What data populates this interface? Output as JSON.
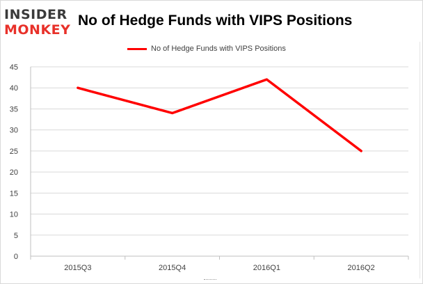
{
  "logo": {
    "top": "INSIDER",
    "bottom": "MONKEY"
  },
  "colors": {
    "series": "#ff0000",
    "grid": "#d9d9d9",
    "axis": "#bfbfbf"
  },
  "chart_data": {
    "type": "line",
    "title": "No of Hedge Funds with VIPS Positions",
    "categories": [
      "2015Q3",
      "2015Q4",
      "2016Q1",
      "2016Q2"
    ],
    "series": [
      {
        "name": "No of Hedge Funds with VIPS Positions",
        "values": [
          40,
          34,
          42,
          25
        ]
      }
    ],
    "ylim": [
      0,
      45
    ],
    "yticks": [
      0,
      5,
      10,
      15,
      20,
      25,
      30,
      35,
      40,
      45
    ],
    "xlabel": "",
    "ylabel": "",
    "grid": true,
    "legend": "top-center"
  }
}
